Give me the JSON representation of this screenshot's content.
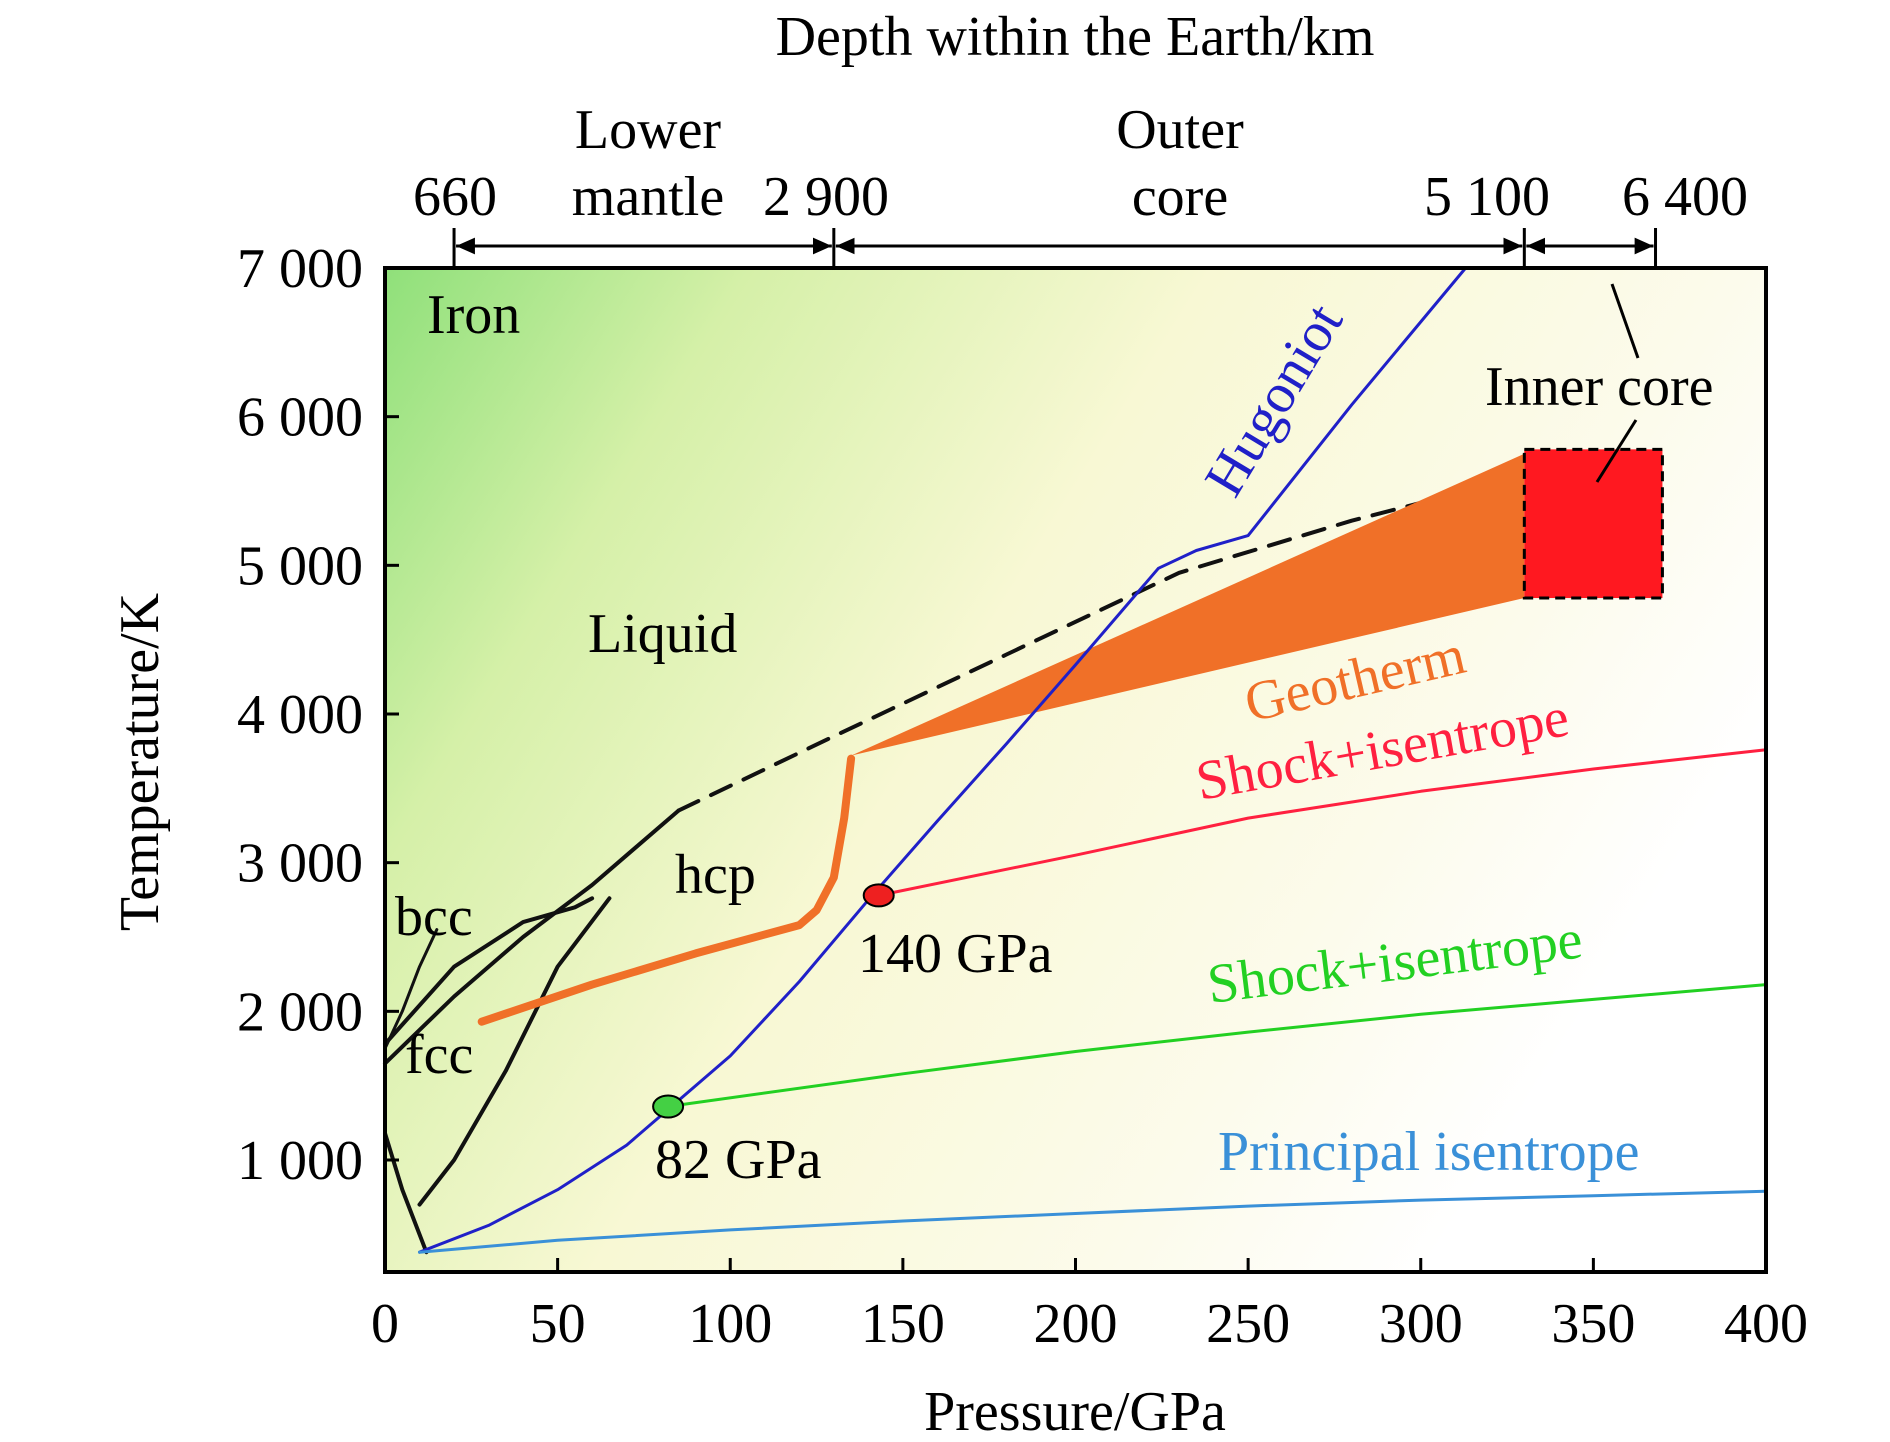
{
  "chart_data": {
    "type": "line",
    "xlabel": "Pressure/GPa",
    "ylabel": "Temperature/K",
    "top_axis_label": "Depth within the Earth/km",
    "xlim": [
      0,
      400
    ],
    "ylim": [
      350,
      7000
    ],
    "xticks": [
      0,
      50,
      100,
      150,
      200,
      250,
      300,
      350,
      400
    ],
    "xtick_labels": [
      "0",
      "50",
      "100",
      "150",
      "200",
      "250",
      "300",
      "350",
      "400"
    ],
    "yticks": [
      1000,
      2000,
      3000,
      4000,
      5000,
      6000,
      7000
    ],
    "ytick_labels": [
      "1 000",
      "2 000",
      "3 000",
      "4 000",
      "5 000",
      "6 000",
      "7 000"
    ],
    "grid": false,
    "depth_scale": {
      "ticks": [
        {
          "label": "660",
          "pressure": 20
        },
        {
          "label": "2 900",
          "pressure": 130
        },
        {
          "label": "5 100",
          "pressure": 330
        },
        {
          "label": "6 400",
          "pressure": 368
        }
      ],
      "regions": [
        {
          "label_line1": "Lower",
          "label_line2": "mantle",
          "from": 20,
          "to": 130
        },
        {
          "label_line1": "Outer",
          "label_line2": "core",
          "from": 130,
          "to": 330
        },
        {
          "label": "Inner core",
          "from": 330,
          "to": 368
        }
      ]
    },
    "phase_labels": {
      "iron": "Iron",
      "liquid": "Liquid",
      "hcp": "hcp",
      "bcc": "bcc",
      "fcc": "fcc"
    },
    "series": [
      {
        "name": "Hugoniot",
        "color": "#2020c8",
        "x": [
          10,
          30,
          50,
          70,
          80,
          100,
          120,
          140,
          160,
          180,
          200,
          224,
          235,
          250,
          280,
          313
        ],
        "y": [
          380,
          560,
          800,
          1100,
          1300,
          1700,
          2200,
          2750,
          3280,
          3800,
          4330,
          4980,
          5100,
          5200,
          6080,
          7000
        ]
      },
      {
        "name": "Shock+isentrope",
        "color": "#ff2040",
        "x": [
          143,
          200,
          250,
          300,
          350,
          400
        ],
        "y": [
          2780,
          3050,
          3300,
          3480,
          3630,
          3760
        ]
      },
      {
        "name": "Shock+isentrope",
        "color": "#22d022",
        "x": [
          82,
          150,
          200,
          250,
          300,
          350,
          400
        ],
        "y": [
          1360,
          1580,
          1730,
          1860,
          1980,
          2080,
          2180
        ]
      },
      {
        "name": "Principal isentrope",
        "color": "#3a90d8",
        "x": [
          10,
          50,
          100,
          150,
          200,
          250,
          300,
          350,
          400
        ],
        "y": [
          380,
          460,
          530,
          590,
          640,
          690,
          730,
          760,
          790
        ]
      }
    ],
    "melting_curve": {
      "solid_x": [
        0,
        20,
        40,
        60,
        70,
        85
      ],
      "solid_y": [
        1650,
        2100,
        2500,
        2850,
        3050,
        3350
      ],
      "dashed_x": [
        85,
        130,
        180,
        230,
        280,
        330
      ],
      "dashed_y": [
        3350,
        3850,
        4400,
        4950,
        5300,
        5600
      ]
    },
    "phase_boundaries": {
      "bcc_fcc_upper": {
        "x": [
          0,
          20,
          40,
          55,
          60
        ],
        "y": [
          1780,
          2300,
          2600,
          2700,
          2760
        ]
      },
      "fcc_hcp": {
        "x": [
          10,
          20,
          35,
          50,
          65
        ],
        "y": [
          700,
          1000,
          1600,
          2300,
          2760
        ]
      },
      "alpha_gamma": {
        "x": [
          0,
          5,
          10,
          12
        ],
        "y": [
          1180,
          800,
          500,
          380
        ]
      },
      "bcc_fcc_low": {
        "x": [
          0,
          5,
          10,
          15
        ],
        "y": [
          1750,
          2000,
          2300,
          2550
        ]
      }
    },
    "geotherm": {
      "label": "Geotherm",
      "color": "#f07028",
      "mantle_x": [
        28,
        60,
        90,
        120,
        125,
        130,
        133,
        135
      ],
      "mantle_y": [
        1930,
        2180,
        2390,
        2580,
        2680,
        2900,
        3300,
        3700
      ],
      "band_x": [
        135,
        330
      ],
      "band_upper": [
        3720,
        5750
      ],
      "band_lower": [
        3720,
        4780
      ]
    },
    "inner_core_box": {
      "color": "#ff1820",
      "x": [
        330,
        370
      ],
      "y": [
        4780,
        5780
      ]
    },
    "points": [
      {
        "label": "140 GPa",
        "x": 143,
        "y": 2780,
        "color": "#ee2020"
      },
      {
        "label": "82 GPa",
        "x": 82,
        "y": 1360,
        "color": "#44d044"
      }
    ]
  }
}
